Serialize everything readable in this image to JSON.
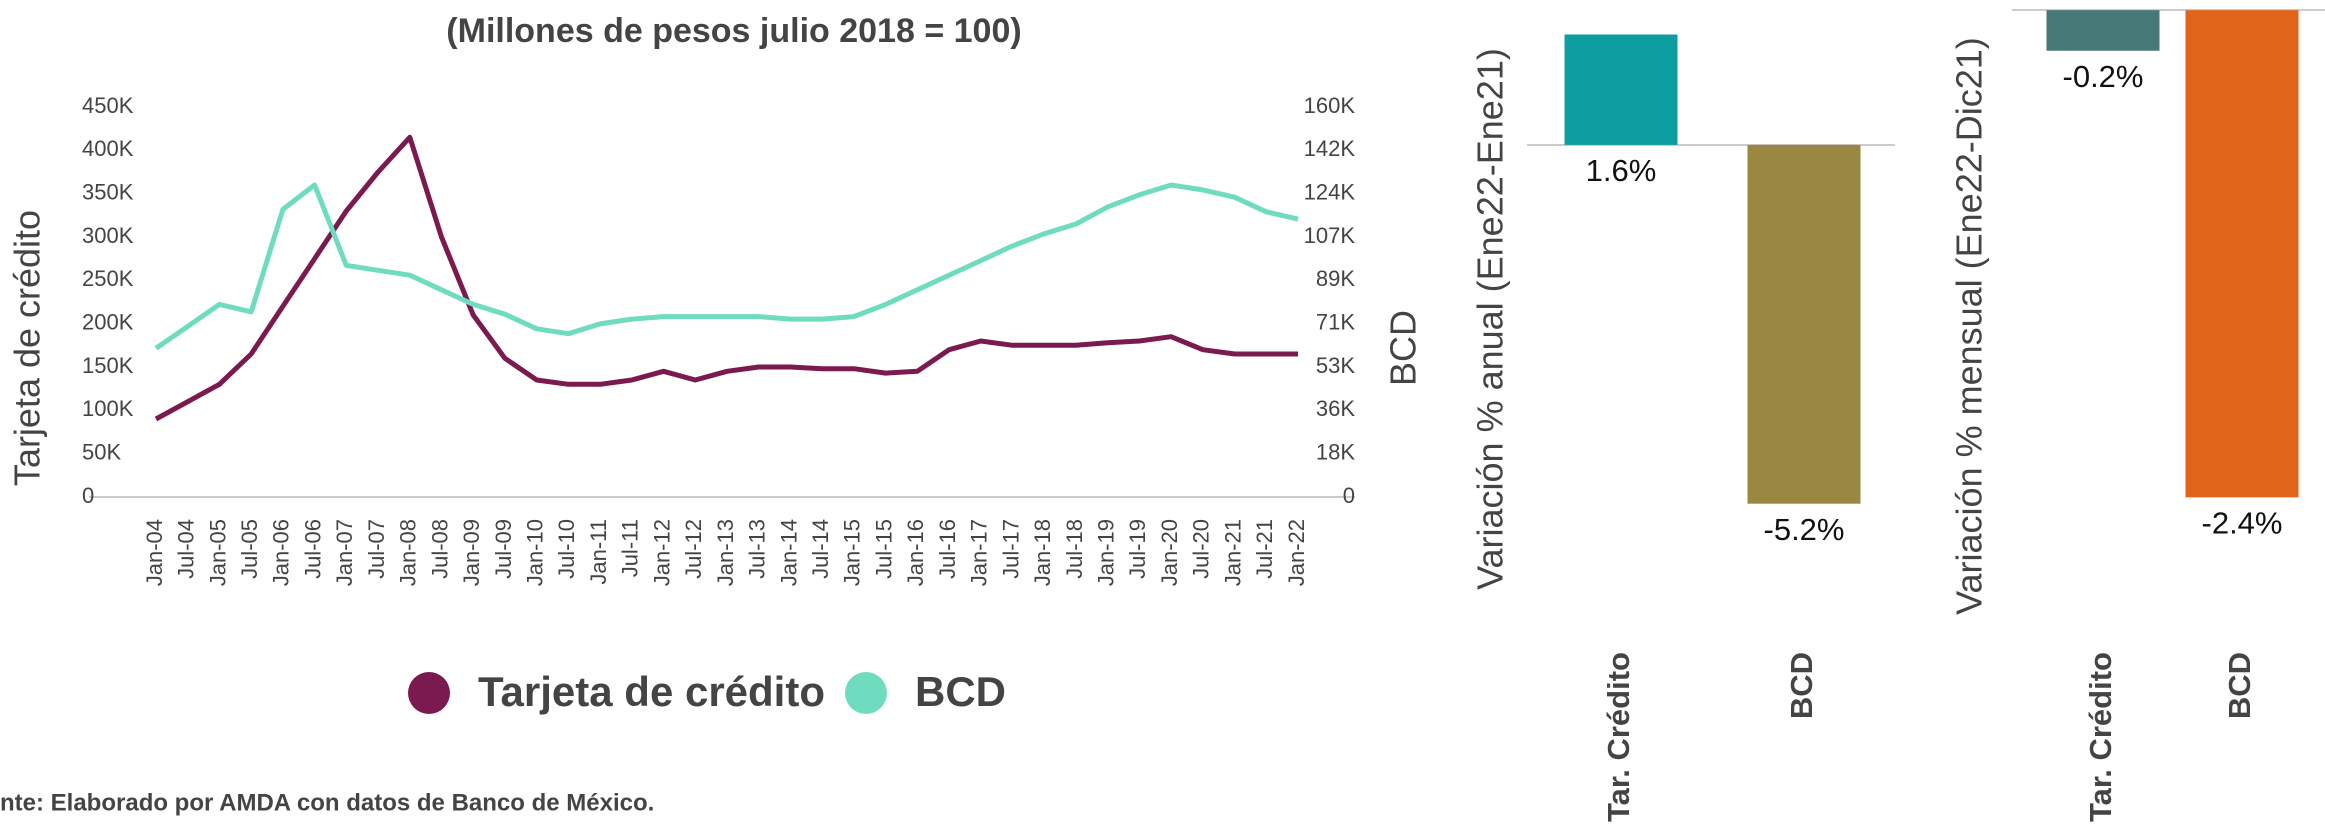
{
  "chart_data": [
    {
      "type": "line",
      "title": "(Millones de pesos julio 2018 = 100)",
      "ylabel": "Tarjeta de crédito",
      "y2label": "BCD",
      "source": "nte: Elaborado por AMDA con datos de Banco de México.",
      "categories": [
        "Jan-04",
        "Jul-04",
        "Jan-05",
        "Jul-05",
        "Jan-06",
        "Jul-06",
        "Jan-07",
        "Jul-07",
        "Jan-08",
        "Jul-08",
        "Jan-09",
        "Jul-09",
        "Jan-10",
        "Jul-10",
        "Jan-11",
        "Jul-11",
        "Jan-12",
        "Jul-12",
        "Jan-13",
        "Jul-13",
        "Jan-14",
        "Jul-14",
        "Jan-15",
        "Jul-15",
        "Jan-16",
        "Jul-16",
        "Jan-17",
        "Jul-17",
        "Jan-18",
        "Jul-18",
        "Jan-19",
        "Jul-19",
        "Jan-20",
        "Jul-20",
        "Jan-21",
        "Jul-21",
        "Jan-22"
      ],
      "series": [
        {
          "name": "Tarjeta de crédito",
          "color": "#7b1a4e",
          "values": [
            90000,
            110000,
            130000,
            165000,
            220000,
            275000,
            330000,
            375000,
            415000,
            300000,
            210000,
            160000,
            135000,
            130000,
            130000,
            135000,
            145000,
            135000,
            145000,
            150000,
            150000,
            148000,
            148000,
            143000,
            145000,
            170000,
            180000,
            175000,
            175000,
            175000,
            178000,
            180000,
            185000,
            170000,
            165000,
            165000,
            165000
          ]
        },
        {
          "name": "BCD",
          "color": "#6fdcc0",
          "axis": "y2",
          "values": [
            61000,
            70000,
            79000,
            76000,
            118000,
            128000,
            95000,
            93000,
            91000,
            85000,
            79000,
            75000,
            69000,
            67000,
            71000,
            73000,
            74000,
            74000,
            74000,
            74000,
            73000,
            73000,
            74000,
            79000,
            85000,
            91000,
            97000,
            103000,
            108000,
            112000,
            119000,
            124000,
            128000,
            126000,
            123000,
            117000,
            114000
          ]
        }
      ],
      "ylim": [
        0,
        450000
      ],
      "yticks": [
        0,
        {
          "value": 50000,
          "label": "50K"
        },
        {
          "value": 100000,
          "label": "100K"
        },
        {
          "value": 150000,
          "label": "150K"
        },
        {
          "value": 200000,
          "label": "200K"
        },
        {
          "value": 250000,
          "label": "250K"
        },
        {
          "value": 300000,
          "label": "300K"
        },
        {
          "value": 350000,
          "label": "350K"
        },
        {
          "value": 400000,
          "label": "400K"
        },
        {
          "value": 450000,
          "label": "450K"
        }
      ],
      "y2lim": [
        0,
        160000
      ],
      "y2ticks": [
        0,
        {
          "value": 17778,
          "label": "18K"
        },
        {
          "value": 35556,
          "label": "36K"
        },
        {
          "value": 53333,
          "label": "53K"
        },
        {
          "value": 71111,
          "label": "71K"
        },
        {
          "value": 88889,
          "label": "89K"
        },
        {
          "value": 106667,
          "label": "107K"
        },
        {
          "value": 124444,
          "label": "124K"
        },
        {
          "value": 142222,
          "label": "142K"
        },
        {
          "value": 160000,
          "label": "160K"
        }
      ],
      "legend": "bottom"
    },
    {
      "type": "bar",
      "ylabel": "Variación % anual (Ene22-Ene21)",
      "categories": [
        "Tar. Crédito",
        "BCD"
      ],
      "values": [
        1.6,
        -5.2
      ],
      "value_labels": [
        "1.6%",
        "-5.2%"
      ],
      "colors": [
        "#0e9ea0",
        "#9a8741"
      ],
      "ylim": [
        -5.5,
        2.1
      ]
    },
    {
      "type": "bar",
      "ylabel": "Variación % mensual (Ene22-Dic21)",
      "categories": [
        "Tar. Crédito",
        "BCD"
      ],
      "values": [
        -0.2,
        -2.4
      ],
      "value_labels": [
        "-0.2%",
        "-2.4%"
      ],
      "colors": [
        "#467a78",
        "#e0651a"
      ],
      "ylim": [
        -2.45,
        0.05
      ]
    }
  ]
}
